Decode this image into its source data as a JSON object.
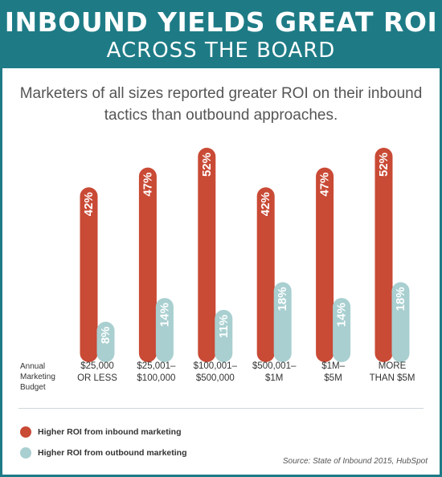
{
  "header": {
    "title": "INBOUND YIELDS GREAT ROI",
    "subtitle": "ACROSS THE BOARD"
  },
  "intro": "Marketers of all sizes reported greater ROI on their inbound tactics than outbound approaches.",
  "budget_label": "Annual Marketing Budget",
  "colors": {
    "inbound": "#c94a35",
    "outbound": "#a9cfd0",
    "header": "#1e7b86"
  },
  "chart_data": {
    "type": "bar",
    "categories": [
      [
        "$25,000",
        "OR LESS"
      ],
      [
        "$25,001–",
        "$100,000"
      ],
      [
        "$100,001–",
        "$500,000"
      ],
      [
        "$500,001–",
        "$1M"
      ],
      [
        "$1M–",
        "$5M"
      ],
      [
        "MORE",
        "THAN $5M"
      ]
    ],
    "series": [
      {
        "name": "Higher ROI from inbound marketing",
        "values": [
          42,
          47,
          52,
          42,
          47,
          52
        ],
        "labels": [
          "42%",
          "47%",
          "52%",
          "42%",
          "47%",
          "52%"
        ]
      },
      {
        "name": "Higher ROI from outbound marketing",
        "values": [
          8,
          14,
          11,
          18,
          14,
          18
        ],
        "labels": [
          "8%",
          "14%",
          "11%",
          "18%",
          "14%",
          "18%"
        ]
      }
    ],
    "ylim": [
      0,
      52
    ],
    "grid": false,
    "legend_position": "bottom-left"
  },
  "legend": {
    "inbound": "Higher ROI from inbound marketing",
    "outbound": "Higher ROI from outbound marketing"
  },
  "source": "Source: State of Inbound 2015, HubSpot"
}
